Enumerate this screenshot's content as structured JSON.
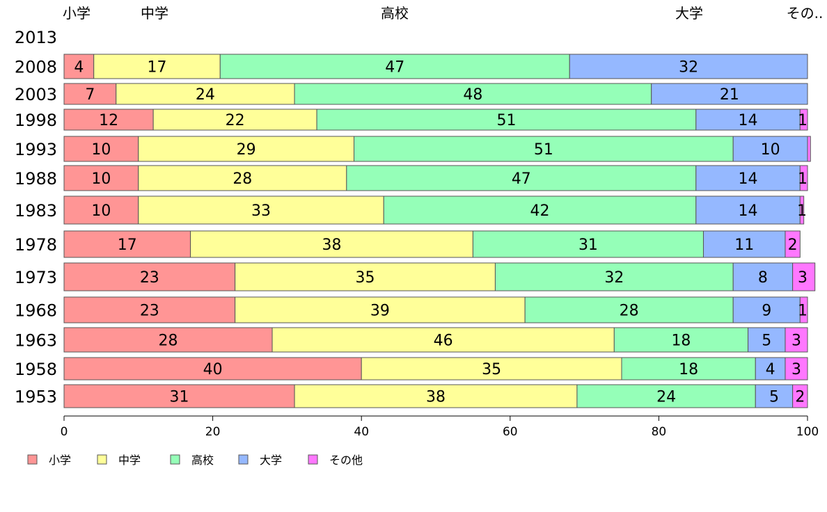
{
  "chart_data": {
    "type": "bar",
    "orientation": "horizontal",
    "stacked": true,
    "categories": [
      "2013",
      "2008",
      "2003",
      "1998",
      "1993",
      "1988",
      "1983",
      "1978",
      "1973",
      "1968",
      "1963",
      "1958",
      "1953"
    ],
    "series": [
      {
        "name": "小学",
        "color": "#ff9595",
        "values": [
          null,
          4,
          7,
          12,
          10,
          10,
          10,
          17,
          23,
          23,
          28,
          40,
          31
        ]
      },
      {
        "name": "中学",
        "color": "#ffff99",
        "values": [
          null,
          17,
          24,
          22,
          29,
          28,
          33,
          38,
          35,
          39,
          46,
          35,
          38
        ]
      },
      {
        "name": "高校",
        "color": "#95ffb8",
        "values": [
          null,
          47,
          48,
          51,
          51,
          47,
          42,
          31,
          32,
          28,
          18,
          18,
          24
        ]
      },
      {
        "name": "大学",
        "color": "#95b8ff",
        "values": [
          null,
          32,
          21,
          14,
          10,
          14,
          14,
          11,
          8,
          9,
          5,
          4,
          5
        ]
      },
      {
        "name": "その他",
        "color": "#ff77ff",
        "values": [
          null,
          0,
          0,
          1,
          0.4,
          1,
          0.5,
          2,
          3,
          1,
          3,
          3,
          2
        ]
      }
    ],
    "value_labels": [
      [
        null,
        "4",
        "7",
        "12",
        "10",
        "10",
        "10",
        "17",
        "23",
        "23",
        "28",
        "40",
        "31"
      ],
      [
        null,
        "17",
        "24",
        "22",
        "29",
        "28",
        "33",
        "38",
        "35",
        "39",
        "46",
        "35",
        "38"
      ],
      [
        null,
        "47",
        "48",
        "51",
        "51",
        "47",
        "42",
        "31",
        "32",
        "28",
        "18",
        "18",
        "24"
      ],
      [
        null,
        "32",
        "21",
        "14",
        "10",
        "14",
        "14",
        "11",
        "8",
        "9",
        "5",
        "4",
        "5"
      ],
      [
        null,
        "",
        "",
        "1",
        "",
        "1",
        "1",
        "2",
        "3",
        "1",
        "3",
        "3",
        "2"
      ]
    ],
    "top_labels": [
      "小学",
      "中学",
      "高校",
      "大学",
      "その.."
    ],
    "xlim": [
      0,
      100
    ],
    "xticks": [
      0,
      20,
      40,
      60,
      80,
      100
    ],
    "legend": [
      "小学",
      "中学",
      "高校",
      "大学",
      "その他"
    ],
    "legend_position": "bottom-left",
    "grid": false
  }
}
